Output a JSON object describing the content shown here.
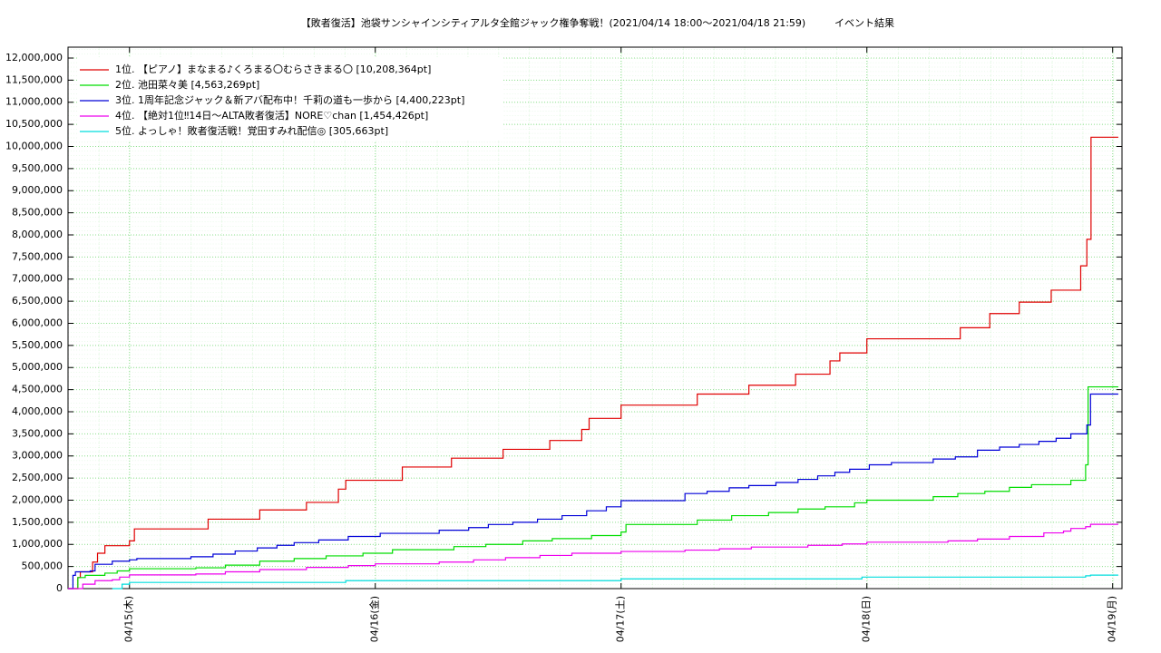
{
  "chart_data": {
    "type": "line",
    "step": "post",
    "title": "【敗者復活】池袋サンシャインシティアルタ全館ジャック権争奪戦！(2021/04/14 18:00〜2021/04/18 21:59)",
    "subtitle": "イベント結果",
    "xlim": [
      14.75,
      19.038
    ],
    "xticks": [
      {
        "value": 15,
        "label": "04/15(木)"
      },
      {
        "value": 16,
        "label": "04/16(金)"
      },
      {
        "value": 17,
        "label": "04/17(土)"
      },
      {
        "value": 18,
        "label": "04/18(日)"
      },
      {
        "value": 19,
        "label": "04/19(月)"
      }
    ],
    "ylim": [
      0,
      12246000
    ],
    "yticks": [
      0,
      {
        "value": 500000,
        "label": "500,000"
      },
      {
        "value": 1000000,
        "label": "1,000,000"
      },
      {
        "value": 1500000,
        "label": "1,500,000"
      },
      {
        "value": 2000000,
        "label": "2,000,000"
      },
      {
        "value": 2500000,
        "label": "2,500,000"
      },
      {
        "value": 3000000,
        "label": "3,000,000"
      },
      {
        "value": 3500000,
        "label": "3,500,000"
      },
      {
        "value": 4000000,
        "label": "4,000,000"
      },
      {
        "value": 4500000,
        "label": "4,500,000"
      },
      {
        "value": 5000000,
        "label": "5,000,000"
      },
      {
        "value": 5500000,
        "label": "5,500,000"
      },
      {
        "value": 6000000,
        "label": "6,000,000"
      },
      {
        "value": 6500000,
        "label": "6,500,000"
      },
      {
        "value": 7000000,
        "label": "7,000,000"
      },
      {
        "value": 7500000,
        "label": "7,500,000"
      },
      {
        "value": 8000000,
        "label": "8,000,000"
      },
      {
        "value": 8500000,
        "label": "8,500,000"
      },
      {
        "value": 9000000,
        "label": "9,000,000"
      },
      {
        "value": 9500000,
        "label": "9,500,000"
      },
      {
        "value": 10000000,
        "label": "10,000,000"
      },
      {
        "value": 10500000,
        "label": "10,500,000"
      },
      {
        "value": 11000000,
        "label": "11,000,000"
      },
      {
        "value": 11500000,
        "label": "11,500,000"
      },
      {
        "value": 12000000,
        "label": "12,000,000"
      }
    ],
    "grid": true,
    "legend": "top-left",
    "series": [
      {
        "name": "1位. 【ピアノ】まなまる♪くろまる〇むらさきまる〇 [10,208,364pt]",
        "color": "#e00000",
        "x": [
          14.75,
          14.79,
          14.8,
          14.85,
          14.87,
          14.9,
          15.0,
          15.02,
          15.32,
          15.53,
          15.72,
          15.85,
          15.88,
          16.11,
          16.31,
          16.52,
          16.71,
          16.84,
          16.87,
          17.0,
          17.31,
          17.52,
          17.71,
          17.85,
          17.89,
          18.0,
          18.38,
          18.5,
          18.62,
          18.75,
          18.87,
          18.895,
          18.912,
          19.023
        ],
        "values": [
          0,
          250000,
          380000,
          600000,
          800000,
          970000,
          1080000,
          1350000,
          1570000,
          1780000,
          1950000,
          2250000,
          2450000,
          2750000,
          2950000,
          3150000,
          3350000,
          3600000,
          3850000,
          4150000,
          4400000,
          4600000,
          4850000,
          5150000,
          5330000,
          5650000,
          5900000,
          6220000,
          6480000,
          6750000,
          7300000,
          7900000,
          10208364,
          10208364
        ]
      },
      {
        "name": "2位. 池田菜々美 [4,563,269pt]",
        "color": "#00dd00",
        "x": [
          14.75,
          14.79,
          14.82,
          14.9,
          14.95,
          15.0,
          15.27,
          15.39,
          15.53,
          15.67,
          15.8,
          15.95,
          16.07,
          16.32,
          16.45,
          16.6,
          16.72,
          16.88,
          17.0,
          17.02,
          17.31,
          17.45,
          17.6,
          17.72,
          17.83,
          17.95,
          18.0,
          18.27,
          18.37,
          18.48,
          18.58,
          18.67,
          18.83,
          18.89,
          18.9,
          18.906,
          19.023
        ],
        "values": [
          0,
          250000,
          300000,
          350000,
          400000,
          450000,
          470000,
          530000,
          620000,
          680000,
          740000,
          800000,
          880000,
          950000,
          1000000,
          1080000,
          1130000,
          1200000,
          1280000,
          1450000,
          1550000,
          1650000,
          1720000,
          1800000,
          1850000,
          1940000,
          2000000,
          2080000,
          2150000,
          2200000,
          2290000,
          2350000,
          2450000,
          2800000,
          4563269,
          4563269,
          4563269
        ]
      },
      {
        "name": "3位. 1周年記念ジャック＆新アバ配布中！千莉の道も一歩から [4,400,223pt]",
        "color": "#0000d8",
        "x": [
          14.75,
          14.77,
          14.78,
          14.84,
          14.86,
          14.93,
          15.0,
          15.03,
          15.25,
          15.34,
          15.43,
          15.52,
          15.6,
          15.67,
          15.77,
          15.89,
          16.02,
          16.26,
          16.38,
          16.46,
          16.56,
          16.66,
          16.76,
          16.86,
          16.94,
          17.0,
          17.26,
          17.35,
          17.44,
          17.52,
          17.63,
          17.72,
          17.8,
          17.87,
          17.93,
          18.01,
          18.1,
          18.27,
          18.36,
          18.45,
          18.54,
          18.62,
          18.7,
          18.77,
          18.83,
          18.895,
          18.91,
          19.023
        ],
        "values": [
          0,
          300000,
          380000,
          400000,
          550000,
          620000,
          650000,
          680000,
          720000,
          780000,
          850000,
          920000,
          980000,
          1040000,
          1100000,
          1180000,
          1250000,
          1320000,
          1380000,
          1450000,
          1500000,
          1570000,
          1650000,
          1760000,
          1850000,
          1990000,
          2150000,
          2200000,
          2280000,
          2330000,
          2400000,
          2470000,
          2550000,
          2630000,
          2700000,
          2800000,
          2850000,
          2930000,
          2980000,
          3130000,
          3200000,
          3260000,
          3330000,
          3400000,
          3500000,
          3700000,
          4400223,
          4400223
        ]
      },
      {
        "name": "4位. 【絶対1位‼14日〜ALTA敗者復活】NORE♡chan [1,454,426pt]",
        "color": "#ee00ee",
        "x": [
          14.75,
          14.81,
          14.86,
          14.93,
          14.96,
          15.0,
          15.27,
          15.39,
          15.53,
          15.72,
          15.89,
          16.0,
          16.26,
          16.4,
          16.53,
          16.67,
          16.8,
          17.0,
          17.26,
          17.4,
          17.53,
          17.76,
          17.9,
          18.0,
          18.33,
          18.45,
          18.58,
          18.72,
          18.8,
          18.83,
          18.89,
          18.91,
          19.023
        ],
        "values": [
          0,
          100000,
          180000,
          200000,
          260000,
          310000,
          330000,
          380000,
          430000,
          480000,
          520000,
          560000,
          600000,
          650000,
          700000,
          750000,
          800000,
          840000,
          870000,
          900000,
          940000,
          980000,
          1010000,
          1050000,
          1080000,
          1120000,
          1180000,
          1260000,
          1300000,
          1360000,
          1400000,
          1454426,
          1454426
        ]
      },
      {
        "name": "5位. よっしゃ！敗者復活戦！覚田すみれ配信◎ [305,663pt]",
        "color": "#00dddd",
        "x": [
          14.93,
          14.97,
          15.0,
          15.88,
          17.0,
          17.98,
          18.89,
          18.91,
          19.023
        ],
        "values": [
          0,
          100000,
          140000,
          180000,
          220000,
          260000,
          290000,
          305663,
          305663
        ]
      }
    ]
  }
}
